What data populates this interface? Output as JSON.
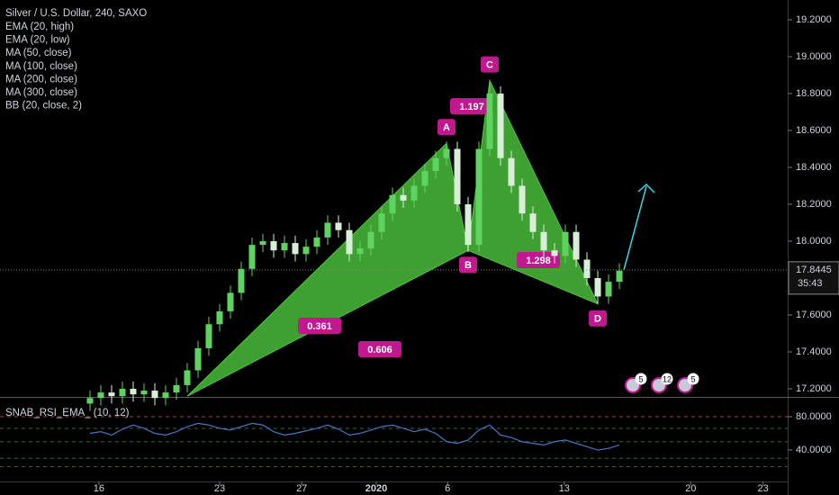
{
  "chart_data": [
    {
      "type": "candlestick",
      "title": "Silver / U.S. Dollar, 240, SAXO",
      "indicators": [
        "EMA (20, high)",
        "EMA (20, low)",
        "MA (50, close)",
        "MA (100, close)",
        "MA (200, close)",
        "MA (300, close)",
        "BB (20, close, 2)"
      ],
      "xlim": [
        -8.33,
        64.58
      ],
      "xticks": [
        {
          "value": 0.83,
          "label": "16"
        },
        {
          "value": 12,
          "label": "23"
        },
        {
          "value": 19.6,
          "label": "27"
        },
        {
          "value": 26.5,
          "label": "2020"
        },
        {
          "value": 33.1,
          "label": "6"
        },
        {
          "value": 43.9,
          "label": "13"
        },
        {
          "value": 55.6,
          "label": "20"
        },
        {
          "value": 62.3,
          "label": "23"
        }
      ],
      "ylim": [
        17.161,
        19.307
      ],
      "yticks": [
        {
          "value": 19.2,
          "label": "19.2000"
        },
        {
          "value": 19.0,
          "label": "19.0000"
        },
        {
          "value": 18.8,
          "label": "18.8000"
        },
        {
          "value": 18.6,
          "label": "18.6000"
        },
        {
          "value": 18.4,
          "label": "18.4000"
        },
        {
          "value": 18.2,
          "label": "18.2000"
        },
        {
          "value": 18.0,
          "label": "18.0000"
        },
        {
          "value": 17.6,
          "label": "17.6000"
        },
        {
          "value": 17.4,
          "label": "17.4000"
        },
        {
          "value": 17.2,
          "label": "17.2000"
        }
      ],
      "up_color": "#5fd35f",
      "down_color": "#d8eed8",
      "open": [
        17.12,
        17.15,
        17.18,
        17.16,
        17.2,
        17.17,
        17.19,
        17.15,
        17.18,
        17.22,
        17.3,
        17.42,
        17.55,
        17.62,
        17.72,
        17.85,
        17.98,
        18.0,
        17.95,
        17.99,
        17.93,
        17.97,
        18.02,
        18.1,
        18.06,
        17.93,
        17.96,
        18.05,
        18.15,
        18.25,
        18.22,
        18.3,
        18.38,
        18.45,
        18.5,
        18.2,
        17.98,
        18.5,
        18.8,
        18.45,
        18.3,
        18.15,
        18.05,
        17.95,
        17.92,
        18.05,
        17.9,
        17.8,
        17.7,
        17.78
      ],
      "high": [
        17.19,
        17.22,
        17.22,
        17.24,
        17.24,
        17.23,
        17.23,
        17.22,
        17.26,
        17.34,
        17.46,
        17.59,
        17.66,
        17.76,
        17.89,
        18.02,
        18.04,
        18.04,
        18.03,
        18.03,
        18.01,
        18.06,
        18.14,
        18.14,
        18.1,
        18.0,
        18.09,
        18.19,
        18.29,
        18.29,
        18.34,
        18.42,
        18.49,
        18.54,
        18.54,
        18.24,
        18.54,
        18.87,
        18.84,
        18.49,
        18.34,
        18.19,
        18.09,
        17.99,
        18.09,
        18.09,
        17.94,
        17.84,
        17.82,
        17.88
      ],
      "low": [
        17.08,
        17.11,
        17.12,
        17.12,
        17.13,
        17.13,
        17.11,
        17.11,
        17.14,
        17.18,
        17.26,
        17.38,
        17.51,
        17.58,
        17.68,
        17.81,
        17.94,
        17.91,
        17.91,
        17.89,
        17.89,
        17.93,
        17.98,
        18.02,
        17.89,
        17.89,
        17.92,
        18.01,
        18.11,
        18.18,
        18.18,
        18.26,
        18.34,
        18.41,
        18.16,
        17.94,
        17.94,
        18.46,
        18.41,
        18.26,
        18.11,
        18.01,
        17.91,
        17.88,
        17.88,
        17.86,
        17.76,
        17.66,
        17.66,
        17.74
      ],
      "close": [
        17.15,
        17.18,
        17.16,
        17.2,
        17.17,
        17.19,
        17.15,
        17.18,
        17.22,
        17.3,
        17.42,
        17.55,
        17.62,
        17.72,
        17.85,
        17.98,
        18.0,
        17.95,
        17.99,
        17.93,
        17.97,
        18.02,
        18.1,
        18.06,
        17.93,
        17.96,
        18.05,
        18.15,
        18.25,
        18.22,
        18.3,
        18.38,
        18.45,
        18.5,
        18.2,
        17.98,
        18.5,
        18.8,
        18.45,
        18.3,
        18.15,
        18.05,
        17.95,
        17.92,
        18.05,
        17.9,
        17.8,
        17.7,
        17.78,
        17.84
      ],
      "pattern": {
        "color": "#4cc83c",
        "points": [
          {
            "label": null,
            "x": 9,
            "y": 17.16
          },
          {
            "label": "A",
            "x": 33,
            "y": 18.53
          },
          {
            "label": "B",
            "x": 35,
            "y": 17.95
          },
          {
            "label": "C",
            "x": 37,
            "y": 18.87
          },
          {
            "label": "D",
            "x": 47,
            "y": 17.66
          }
        ],
        "ratios": [
          "0.361",
          "0.606",
          "1.197",
          "1.298"
        ]
      },
      "last_price": 17.8445,
      "countdown": "35:43",
      "event_badges": [
        "5",
        "12",
        "5"
      ]
    },
    {
      "type": "line",
      "title": "SNAB_RSI_EMA_ (10, 12)",
      "ylim": [
        2.2,
        102.7
      ],
      "yticks": [
        {
          "value": 80,
          "label": "80.0000"
        },
        {
          "value": 40,
          "label": "40.0000"
        }
      ],
      "levels": [
        80,
        66,
        50,
        30,
        20
      ],
      "color": "#4a73c4",
      "values": [
        60,
        62,
        58,
        65,
        70,
        66,
        60,
        58,
        62,
        68,
        72,
        70,
        66,
        64,
        68,
        72,
        70,
        62,
        58,
        60,
        63,
        66,
        70,
        65,
        58,
        60,
        64,
        68,
        70,
        66,
        62,
        65,
        60,
        50,
        48,
        52,
        64,
        70,
        58,
        55,
        50,
        48,
        46,
        50,
        52,
        48,
        44,
        40,
        42,
        46
      ]
    }
  ]
}
